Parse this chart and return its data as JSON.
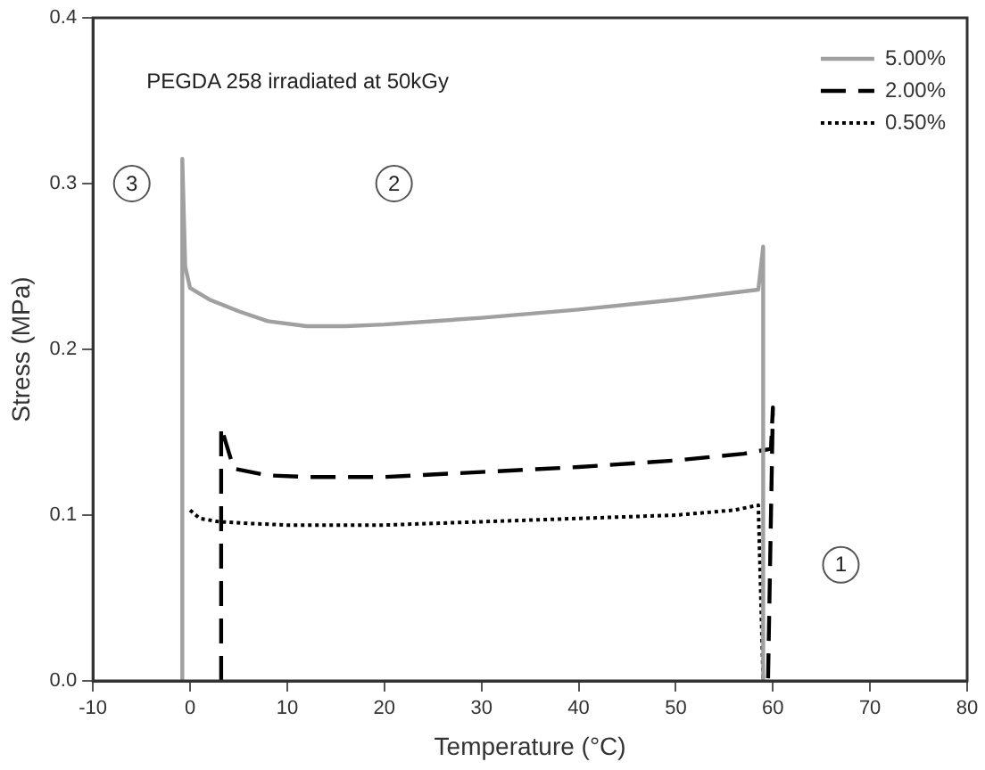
{
  "chart_data": {
    "type": "line",
    "xlabel": "Temperature (°C)",
    "ylabel": "Stress (MPa)",
    "xlim": [
      -10,
      80
    ],
    "xticks": [
      -10,
      0,
      10,
      20,
      30,
      40,
      50,
      60,
      70,
      80
    ],
    "ylim": [
      0,
      0.4
    ],
    "yticks": [
      {
        "value": 0,
        "label": "0.0"
      },
      {
        "value": 0.1,
        "label": "0.1"
      },
      {
        "value": 0.2,
        "label": "0.2"
      },
      {
        "value": 0.3,
        "label": "0.3"
      },
      {
        "value": 0.4,
        "label": "0.4"
      }
    ],
    "grid": false,
    "legend": "top right",
    "marker": "none",
    "series": [
      {
        "name": "5.00%",
        "color": "#a0a0a0",
        "line_style": "solid",
        "x": [
          -0.8,
          -0.8,
          -0.5,
          0,
          2,
          5,
          8,
          12,
          16,
          20,
          30,
          40,
          50,
          58.5,
          59,
          59
        ],
        "values": [
          0,
          0.315,
          0.25,
          0.237,
          0.23,
          0.223,
          0.217,
          0.214,
          0.214,
          0.215,
          0.219,
          0.224,
          0.23,
          0.236,
          0.262,
          0
        ]
      },
      {
        "name": "2.00%",
        "color": "#000000",
        "line_style": "dashed",
        "x": [
          3.2,
          3.2,
          4.5,
          8,
          12,
          20,
          30,
          40,
          50,
          57,
          59.8,
          60,
          59.5
        ],
        "values": [
          0,
          0.153,
          0.128,
          0.124,
          0.123,
          0.123,
          0.126,
          0.129,
          0.133,
          0.137,
          0.14,
          0.165,
          0
        ]
      },
      {
        "name": "0.50%",
        "color": "#000000",
        "line_style": "dotted",
        "x": [
          0,
          1,
          3,
          6,
          10,
          20,
          30,
          40,
          50,
          56,
          58.5,
          59
        ],
        "values": [
          0.103,
          0.098,
          0.096,
          0.095,
          0.094,
          0.094,
          0.096,
          0.098,
          0.1,
          0.103,
          0.106,
          0
        ]
      }
    ],
    "annotations": [
      "PEGDA 258 irradiated at 50kGy",
      {
        "text": "1",
        "x": 67,
        "y": 0.07
      },
      {
        "text": "2",
        "x": 21,
        "y": 0.3
      },
      {
        "text": "3",
        "x": -6,
        "y": 0.3
      }
    ]
  }
}
